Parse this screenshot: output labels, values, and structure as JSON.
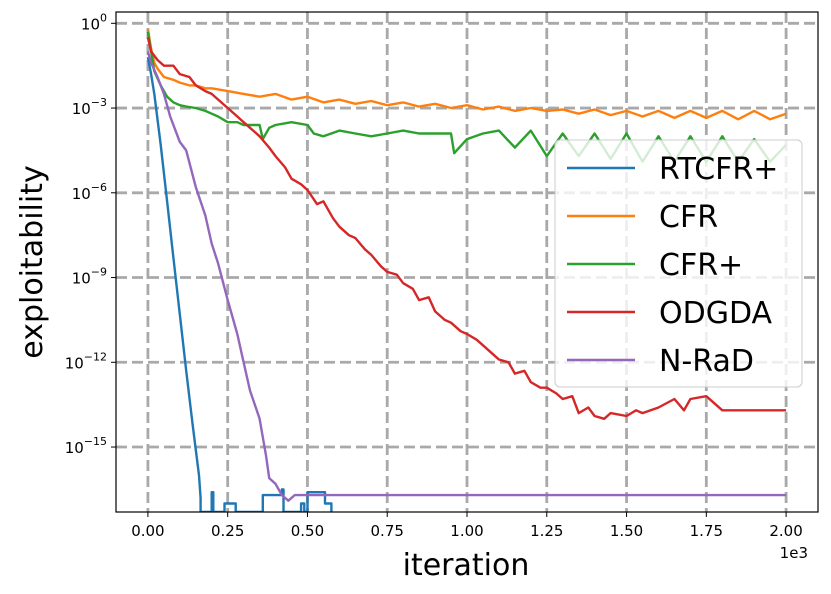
{
  "chart_data": {
    "type": "line",
    "xlabel": "iteration",
    "ylabel": "exploitability",
    "x_scale_label": "1e3",
    "xlim": [
      -0.1,
      2.1
    ],
    "ylim_log10": [
      -17.3,
      0.4
    ],
    "y_scale": "log",
    "grid": true,
    "legend_position": "right",
    "x_ticks": [
      0.0,
      0.25,
      0.5,
      0.75,
      1.0,
      1.25,
      1.5,
      1.75,
      2.0
    ],
    "x_tick_labels": [
      "0.00",
      "0.25",
      "0.50",
      "0.75",
      "1.00",
      "1.25",
      "1.50",
      "1.75",
      "2.00"
    ],
    "y_ticks_log10": [
      0,
      -3,
      -6,
      -9,
      -12,
      -15
    ],
    "y_tick_labels": [
      {
        "base": "10",
        "exp": "0"
      },
      {
        "base": "10",
        "exp": "−3"
      },
      {
        "base": "10",
        "exp": "−6"
      },
      {
        "base": "10",
        "exp": "−9"
      },
      {
        "base": "10",
        "exp": "−12"
      },
      {
        "base": "10",
        "exp": "−15"
      }
    ],
    "series": [
      {
        "name": "RTCFR+",
        "color": "#1f77b4",
        "x": [
          0.0,
          0.01,
          0.02,
          0.04,
          0.06,
          0.08,
          0.1,
          0.12,
          0.14,
          0.16,
          0.165,
          0.165,
          0.2,
          0.2,
          0.205,
          0.205,
          0.24,
          0.24,
          0.275,
          0.275,
          0.36,
          0.36,
          0.42,
          0.42,
          0.425,
          0.425,
          0.48,
          0.48,
          0.49,
          0.49,
          0.5,
          0.5,
          0.555,
          0.555,
          0.575,
          0.575
        ],
        "y_log10": [
          -1.2,
          -1.8,
          -2.5,
          -4.3,
          -6.3,
          -8.3,
          -10.3,
          -12.3,
          -14.2,
          -16.0,
          -16.8,
          -17.3,
          -17.3,
          -16.6,
          -16.6,
          -17.3,
          -17.3,
          -17.0,
          -17.0,
          -17.3,
          -17.3,
          -16.7,
          -16.7,
          -16.5,
          -16.5,
          -17.3,
          -17.3,
          -17.0,
          -17.0,
          -17.3,
          -17.3,
          -16.6,
          -16.6,
          -17.0,
          -17.0,
          -17.3
        ]
      },
      {
        "name": "CFR",
        "color": "#ff7f0e",
        "x": [
          0.0,
          0.01,
          0.02,
          0.03,
          0.05,
          0.08,
          0.1,
          0.13,
          0.15,
          0.18,
          0.2,
          0.25,
          0.3,
          0.35,
          0.4,
          0.45,
          0.5,
          0.55,
          0.6,
          0.65,
          0.7,
          0.75,
          0.8,
          0.85,
          0.9,
          0.95,
          1.0,
          1.05,
          1.1,
          1.15,
          1.2,
          1.25,
          1.3,
          1.35,
          1.4,
          1.45,
          1.5,
          1.55,
          1.6,
          1.65,
          1.7,
          1.75,
          1.8,
          1.85,
          1.9,
          1.95,
          2.0
        ],
        "y_log10": [
          -0.2,
          -0.9,
          -1.4,
          -1.6,
          -1.9,
          -2.0,
          -2.1,
          -2.2,
          -2.2,
          -2.3,
          -2.3,
          -2.4,
          -2.5,
          -2.6,
          -2.5,
          -2.7,
          -2.6,
          -2.8,
          -2.7,
          -2.85,
          -2.75,
          -2.9,
          -2.8,
          -2.95,
          -2.85,
          -3.0,
          -2.9,
          -3.05,
          -2.95,
          -3.1,
          -3.0,
          -3.1,
          -3.05,
          -3.2,
          -3.05,
          -3.25,
          -3.1,
          -3.3,
          -3.1,
          -3.35,
          -3.1,
          -3.35,
          -3.1,
          -3.4,
          -3.1,
          -3.4,
          -3.2
        ]
      },
      {
        "name": "CFR+",
        "color": "#2ca02c",
        "x": [
          0.0,
          0.01,
          0.02,
          0.04,
          0.06,
          0.08,
          0.1,
          0.12,
          0.15,
          0.18,
          0.2,
          0.22,
          0.25,
          0.28,
          0.3,
          0.35,
          0.36,
          0.38,
          0.4,
          0.45,
          0.5,
          0.52,
          0.55,
          0.6,
          0.65,
          0.7,
          0.75,
          0.8,
          0.85,
          0.9,
          0.95,
          0.96,
          1.0,
          1.05,
          1.1,
          1.15,
          1.2,
          1.25,
          1.3,
          1.35,
          1.4,
          1.45,
          1.5,
          1.55,
          1.6,
          1.65,
          1.7,
          1.75,
          1.8,
          1.85,
          1.9,
          1.95,
          2.0
        ],
        "y_log10": [
          -0.3,
          -1.0,
          -1.7,
          -2.2,
          -2.6,
          -2.8,
          -2.9,
          -2.95,
          -3.0,
          -3.1,
          -3.2,
          -3.3,
          -3.5,
          -3.5,
          -3.6,
          -3.6,
          -4.1,
          -3.7,
          -3.6,
          -3.5,
          -3.6,
          -3.9,
          -4.0,
          -3.8,
          -3.9,
          -4.0,
          -3.9,
          -3.8,
          -3.9,
          -3.9,
          -3.9,
          -4.6,
          -4.1,
          -3.9,
          -3.8,
          -4.4,
          -3.8,
          -4.7,
          -3.9,
          -4.7,
          -3.9,
          -4.8,
          -3.9,
          -4.9,
          -4.0,
          -4.9,
          -4.0,
          -4.9,
          -4.0,
          -4.9,
          -4.1,
          -4.9,
          -4.3
        ]
      },
      {
        "name": "ODGDA",
        "color": "#d62728",
        "x": [
          0.0,
          0.01,
          0.03,
          0.05,
          0.08,
          0.1,
          0.13,
          0.15,
          0.18,
          0.2,
          0.23,
          0.25,
          0.28,
          0.3,
          0.33,
          0.35,
          0.38,
          0.4,
          0.43,
          0.45,
          0.48,
          0.5,
          0.53,
          0.55,
          0.58,
          0.6,
          0.63,
          0.65,
          0.68,
          0.7,
          0.73,
          0.75,
          0.78,
          0.8,
          0.83,
          0.85,
          0.88,
          0.9,
          0.93,
          0.95,
          0.98,
          1.0,
          1.03,
          1.05,
          1.08,
          1.1,
          1.13,
          1.15,
          1.18,
          1.2,
          1.23,
          1.25,
          1.28,
          1.3,
          1.33,
          1.35,
          1.38,
          1.4,
          1.43,
          1.45,
          1.5,
          1.53,
          1.55,
          1.6,
          1.65,
          1.68,
          1.7,
          1.75,
          1.8,
          1.85,
          1.9,
          1.95,
          2.0
        ],
        "y_log10": [
          -0.5,
          -1.0,
          -1.3,
          -1.5,
          -1.5,
          -1.8,
          -1.9,
          -2.2,
          -2.4,
          -2.5,
          -2.8,
          -3.0,
          -3.3,
          -3.5,
          -3.8,
          -4.0,
          -4.4,
          -4.7,
          -5.1,
          -5.5,
          -5.7,
          -5.9,
          -6.4,
          -6.3,
          -6.9,
          -7.2,
          -7.5,
          -7.6,
          -8.0,
          -8.2,
          -8.6,
          -8.8,
          -8.9,
          -9.2,
          -9.4,
          -9.8,
          -9.7,
          -10.2,
          -10.5,
          -10.6,
          -10.9,
          -11.0,
          -11.2,
          -11.4,
          -11.7,
          -11.9,
          -12.0,
          -12.4,
          -12.3,
          -12.7,
          -12.9,
          -12.9,
          -13.1,
          -13.3,
          -13.2,
          -13.8,
          -13.6,
          -13.9,
          -14.0,
          -13.8,
          -13.9,
          -13.7,
          -13.8,
          -13.6,
          -13.3,
          -13.7,
          -13.3,
          -13.2,
          -13.7,
          -13.7,
          -13.7,
          -13.7,
          -13.7
        ]
      },
      {
        "name": "N-RaD",
        "color": "#9467bd",
        "x": [
          0.0,
          0.01,
          0.03,
          0.05,
          0.07,
          0.1,
          0.12,
          0.15,
          0.18,
          0.2,
          0.22,
          0.25,
          0.28,
          0.3,
          0.32,
          0.35,
          0.37,
          0.38,
          0.4,
          0.42,
          0.44,
          0.46,
          0.5,
          0.6,
          0.8,
          1.0,
          1.2,
          1.4,
          1.6,
          1.8,
          2.0
        ],
        "y_log10": [
          -1.0,
          -1.4,
          -1.9,
          -2.5,
          -3.3,
          -4.2,
          -4.5,
          -5.8,
          -6.8,
          -7.8,
          -8.5,
          -9.8,
          -11.0,
          -12.0,
          -13.0,
          -14.0,
          -15.3,
          -16.1,
          -16.3,
          -16.7,
          -16.9,
          -16.7,
          -16.7,
          -16.7,
          -16.7,
          -16.7,
          -16.7,
          -16.7,
          -16.7,
          -16.7,
          -16.7
        ]
      }
    ]
  }
}
